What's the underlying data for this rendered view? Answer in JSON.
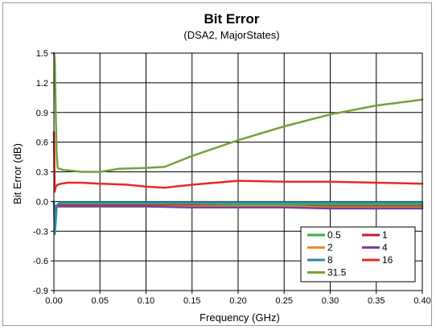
{
  "chart_data": {
    "type": "line",
    "title": "Bit Error",
    "subtitle": "(DSA2, MajorStates)",
    "xlabel": "Frequency (GHz)",
    "ylabel": "Bit Error (dB)",
    "xlim": [
      0.0,
      0.4
    ],
    "ylim": [
      -0.9,
      1.5
    ],
    "xticks": [
      0.0,
      0.05,
      0.1,
      0.15,
      0.2,
      0.25,
      0.3,
      0.35,
      0.4
    ],
    "yticks": [
      -0.9,
      -0.6,
      -0.3,
      0.0,
      0.3,
      0.6,
      0.9,
      1.2,
      1.5
    ],
    "xtick_labels": [
      "0.00",
      "0.05",
      "0.10",
      "0.15",
      "0.20",
      "0.25",
      "0.30",
      "0.35",
      "0.40"
    ],
    "ytick_labels": [
      "-0.9",
      "-0.6",
      "-0.3",
      "0.0",
      "0.3",
      "0.6",
      "0.9",
      "1.2",
      "1.5"
    ],
    "grid": true,
    "legend_position": "bottom-right",
    "series": [
      {
        "name": "0.5",
        "color": "#2db34a",
        "x": [
          0.0,
          0.001,
          0.002,
          0.004,
          0.006,
          0.01,
          0.02,
          0.05,
          0.1,
          0.15,
          0.2,
          0.25,
          0.3,
          0.35,
          0.4
        ],
        "y": [
          0.0,
          -0.15,
          -0.05,
          -0.03,
          -0.03,
          -0.03,
          -0.03,
          -0.03,
          -0.03,
          -0.03,
          -0.03,
          -0.03,
          -0.03,
          -0.03,
          -0.03
        ]
      },
      {
        "name": "1",
        "color": "#c0222b",
        "x": [
          0.0,
          0.001,
          0.002,
          0.004,
          0.006,
          0.01,
          0.02,
          0.05,
          0.1,
          0.15,
          0.2,
          0.25,
          0.3,
          0.35,
          0.4
        ],
        "y": [
          0.0,
          -0.1,
          -0.05,
          -0.04,
          -0.04,
          -0.04,
          -0.04,
          -0.04,
          -0.04,
          -0.04,
          -0.05,
          -0.05,
          -0.05,
          -0.05,
          -0.05
        ]
      },
      {
        "name": "2",
        "color": "#f08a2a",
        "x": [
          0.0,
          0.001,
          0.002,
          0.004,
          0.006,
          0.01,
          0.02,
          0.05,
          0.1,
          0.15,
          0.2,
          0.25,
          0.3,
          0.35,
          0.4
        ],
        "y": [
          0.0,
          -0.12,
          -0.06,
          -0.05,
          -0.05,
          -0.05,
          -0.05,
          -0.05,
          -0.05,
          -0.05,
          -0.05,
          -0.05,
          -0.06,
          -0.06,
          -0.06
        ]
      },
      {
        "name": "4",
        "color": "#7a3ea0",
        "x": [
          0.0,
          0.001,
          0.002,
          0.004,
          0.006,
          0.01,
          0.02,
          0.05,
          0.1,
          0.15,
          0.2,
          0.25,
          0.3,
          0.35,
          0.4
        ],
        "y": [
          0.0,
          -0.2,
          -0.07,
          -0.05,
          -0.05,
          -0.05,
          -0.05,
          -0.05,
          -0.05,
          -0.06,
          -0.06,
          -0.06,
          -0.07,
          -0.07,
          -0.07
        ]
      },
      {
        "name": "8",
        "color": "#2a8aa6",
        "x": [
          0.0,
          0.001,
          0.002,
          0.003,
          0.005,
          0.008,
          0.015,
          0.03,
          0.05,
          0.1,
          0.15,
          0.2,
          0.25,
          0.3,
          0.35,
          0.4
        ],
        "y": [
          0.0,
          -0.33,
          -0.2,
          -0.05,
          -0.02,
          -0.01,
          -0.01,
          -0.01,
          -0.01,
          -0.01,
          -0.01,
          -0.01,
          -0.01,
          -0.01,
          -0.01,
          -0.01
        ]
      },
      {
        "name": "16",
        "color": "#e82a2a",
        "x": [
          0.0,
          0.001,
          0.002,
          0.004,
          0.008,
          0.015,
          0.03,
          0.05,
          0.08,
          0.1,
          0.12,
          0.15,
          0.2,
          0.25,
          0.3,
          0.35,
          0.4
        ],
        "y": [
          0.7,
          0.1,
          0.15,
          0.17,
          0.18,
          0.19,
          0.19,
          0.18,
          0.17,
          0.15,
          0.14,
          0.17,
          0.21,
          0.2,
          0.2,
          0.19,
          0.18
        ]
      },
      {
        "name": "31.5",
        "color": "#77a03a",
        "x": [
          0.0,
          0.001,
          0.002,
          0.003,
          0.004,
          0.006,
          0.01,
          0.02,
          0.03,
          0.05,
          0.07,
          0.1,
          0.12,
          0.15,
          0.2,
          0.25,
          0.3,
          0.35,
          0.4
        ],
        "y": [
          1.5,
          1.45,
          0.9,
          0.5,
          0.34,
          0.33,
          0.32,
          0.31,
          0.3,
          0.3,
          0.33,
          0.34,
          0.35,
          0.46,
          0.62,
          0.76,
          0.88,
          0.97,
          1.03
        ]
      }
    ]
  }
}
